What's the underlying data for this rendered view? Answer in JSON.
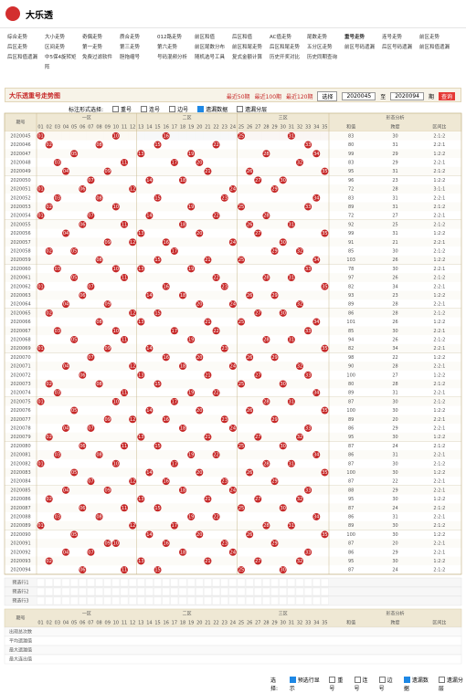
{
  "header": {
    "title": "大乐透"
  },
  "nav": [
    "综合走势",
    "大小走势",
    "奇偶走势",
    "质合走势",
    "012路走势",
    "前区和值",
    "后区和值",
    "AC值走势",
    "尾数走势",
    "重号走势",
    "连号走势",
    "前区走势",
    "后区走势",
    "区间走势",
    "第一走势",
    "第三走势",
    "第六走势",
    "前区尾数分布",
    "前区和尾走势",
    "后区和尾走势",
    "五分区走势",
    "前区号码遗漏",
    "后区号码遗漏",
    "前区和值遗漏",
    "后区和值遗漏",
    "中5保4旋转矩阵",
    "免费过滤软件",
    "胆拖缩号",
    "号码混频分析",
    "随机选号工具",
    "复式金额计算",
    "历史开奖对比",
    "历史同期查询"
  ],
  "panel": {
    "title": "大乐透重号走势图",
    "links": [
      "最近50期",
      "最近100期",
      "最近120期"
    ],
    "select": "选择",
    "from": "2020045",
    "to_label": "至",
    "to": "2020094",
    "period_label": "期",
    "query": "查询"
  },
  "options": {
    "label": "标注形式选择:",
    "items": [
      "重号",
      "连号",
      "边号",
      "遗漏数据",
      "遗漏分层"
    ]
  },
  "table": {
    "period": "期号",
    "zones": [
      "一区",
      "二区",
      "三区"
    ],
    "analysis": "形态分析",
    "analysis_cols": [
      "和值",
      "跨度",
      "区间比"
    ],
    "numbers": [
      "01",
      "02",
      "03",
      "04",
      "05",
      "06",
      "07",
      "08",
      "09",
      "10",
      "11",
      "12",
      "13",
      "14",
      "15",
      "16",
      "17",
      "18",
      "19",
      "20",
      "21",
      "22",
      "23",
      "24",
      "25",
      "26",
      "27",
      "28",
      "29",
      "30",
      "31",
      "32",
      "33",
      "34",
      "35"
    ],
    "rows": [
      {
        "period": "2020045",
        "nums": [
          "01",
          "10",
          "16",
          "25",
          "31"
        ],
        "sum": 83,
        "span": 30,
        "zone": "2:1:2"
      },
      {
        "period": "2020046",
        "nums": [
          "02",
          "08",
          "15",
          "22",
          "33"
        ],
        "sum": 80,
        "span": 31,
        "zone": "2:2:1"
      },
      {
        "period": "2020047",
        "nums": [
          "05",
          "13",
          "19",
          "28",
          "34"
        ],
        "sum": 99,
        "span": 29,
        "zone": "1:2:2"
      },
      {
        "period": "2020048",
        "nums": [
          "03",
          "11",
          "17",
          "20",
          "32"
        ],
        "sum": 83,
        "span": 29,
        "zone": "2:2:1"
      },
      {
        "period": "2020049",
        "nums": [
          "04",
          "09",
          "21",
          "26",
          "35"
        ],
        "sum": 95,
        "span": 31,
        "zone": "2:1:2"
      },
      {
        "period": "2020050",
        "nums": [
          "07",
          "14",
          "18",
          "27",
          "30"
        ],
        "sum": 96,
        "span": 23,
        "zone": "1:2:2"
      },
      {
        "period": "2020051",
        "nums": [
          "01",
          "06",
          "12",
          "24",
          "29"
        ],
        "sum": 72,
        "span": 28,
        "zone": "3:1:1"
      },
      {
        "period": "2020052",
        "nums": [
          "03",
          "08",
          "15",
          "23",
          "34"
        ],
        "sum": 83,
        "span": 31,
        "zone": "2:2:1"
      },
      {
        "period": "2020053",
        "nums": [
          "02",
          "10",
          "19",
          "25",
          "33"
        ],
        "sum": 89,
        "span": 31,
        "zone": "2:1:2"
      },
      {
        "period": "2020054",
        "nums": [
          "01",
          "07",
          "14",
          "22",
          "28"
        ],
        "sum": 72,
        "span": 27,
        "zone": "2:2:1"
      },
      {
        "period": "2020055",
        "nums": [
          "06",
          "11",
          "18",
          "26",
          "31"
        ],
        "sum": 92,
        "span": 25,
        "zone": "2:1:2"
      },
      {
        "period": "2020056",
        "nums": [
          "04",
          "13",
          "20",
          "27",
          "35"
        ],
        "sum": 99,
        "span": 31,
        "zone": "1:2:2"
      },
      {
        "period": "2020057",
        "nums": [
          "09",
          "12",
          "16",
          "24",
          "30"
        ],
        "sum": 91,
        "span": 21,
        "zone": "2:2:1"
      },
      {
        "period": "2020058",
        "nums": [
          "02",
          "05",
          "17",
          "29",
          "32"
        ],
        "sum": 85,
        "span": 30,
        "zone": "2:1:2"
      },
      {
        "period": "2020059",
        "nums": [
          "08",
          "15",
          "21",
          "25",
          "34"
        ],
        "sum": 103,
        "span": 26,
        "zone": "1:2:2"
      },
      {
        "period": "2020060",
        "nums": [
          "03",
          "10",
          "13",
          "19",
          "33"
        ],
        "sum": 78,
        "span": 30,
        "zone": "2:2:1"
      },
      {
        "period": "2020061",
        "nums": [
          "05",
          "11",
          "22",
          "28",
          "31"
        ],
        "sum": 97,
        "span": 26,
        "zone": "2:1:2"
      },
      {
        "period": "2020062",
        "nums": [
          "01",
          "07",
          "16",
          "23",
          "35"
        ],
        "sum": 82,
        "span": 34,
        "zone": "2:2:1"
      },
      {
        "period": "2020063",
        "nums": [
          "06",
          "14",
          "18",
          "26",
          "29"
        ],
        "sum": 93,
        "span": 23,
        "zone": "1:2:2"
      },
      {
        "period": "2020064",
        "nums": [
          "04",
          "09",
          "20",
          "24",
          "32"
        ],
        "sum": 89,
        "span": 28,
        "zone": "2:2:1"
      },
      {
        "period": "2020065",
        "nums": [
          "02",
          "12",
          "15",
          "27",
          "30"
        ],
        "sum": 86,
        "span": 28,
        "zone": "2:1:2"
      },
      {
        "period": "2020066",
        "nums": [
          "08",
          "13",
          "21",
          "25",
          "34"
        ],
        "sum": 101,
        "span": 26,
        "zone": "1:2:2"
      },
      {
        "period": "2020067",
        "nums": [
          "03",
          "10",
          "17",
          "22",
          "33"
        ],
        "sum": 85,
        "span": 30,
        "zone": "2:2:1"
      },
      {
        "period": "2020068",
        "nums": [
          "05",
          "11",
          "19",
          "28",
          "31"
        ],
        "sum": 94,
        "span": 26,
        "zone": "2:1:2"
      },
      {
        "period": "2020069",
        "nums": [
          "01",
          "09",
          "14",
          "23",
          "35"
        ],
        "sum": 82,
        "span": 34,
        "zone": "2:2:1"
      },
      {
        "period": "2020070",
        "nums": [
          "07",
          "16",
          "20",
          "26",
          "29"
        ],
        "sum": 98,
        "span": 22,
        "zone": "1:2:2"
      },
      {
        "period": "2020071",
        "nums": [
          "04",
          "12",
          "18",
          "24",
          "32"
        ],
        "sum": 90,
        "span": 28,
        "zone": "2:2:1"
      },
      {
        "period": "2020072",
        "nums": [
          "06",
          "13",
          "21",
          "27",
          "33"
        ],
        "sum": 100,
        "span": 27,
        "zone": "1:2:2"
      },
      {
        "period": "2020073",
        "nums": [
          "02",
          "08",
          "15",
          "25",
          "30"
        ],
        "sum": 80,
        "span": 28,
        "zone": "2:1:2"
      },
      {
        "period": "2020074",
        "nums": [
          "03",
          "11",
          "19",
          "22",
          "34"
        ],
        "sum": 89,
        "span": 31,
        "zone": "2:2:1"
      },
      {
        "period": "2020075",
        "nums": [
          "01",
          "10",
          "17",
          "28",
          "31"
        ],
        "sum": 87,
        "span": 30,
        "zone": "2:1:2"
      },
      {
        "period": "2020076",
        "nums": [
          "05",
          "14",
          "20",
          "26",
          "35"
        ],
        "sum": 100,
        "span": 30,
        "zone": "1:2:2"
      },
      {
        "period": "2020077",
        "nums": [
          "09",
          "12",
          "16",
          "23",
          "29"
        ],
        "sum": 89,
        "span": 20,
        "zone": "2:2:1"
      },
      {
        "period": "2020078",
        "nums": [
          "04",
          "07",
          "18",
          "24",
          "33"
        ],
        "sum": 86,
        "span": 29,
        "zone": "2:2:1"
      },
      {
        "period": "2020079",
        "nums": [
          "02",
          "13",
          "21",
          "27",
          "32"
        ],
        "sum": 95,
        "span": 30,
        "zone": "1:2:2"
      },
      {
        "period": "2020080",
        "nums": [
          "06",
          "11",
          "15",
          "25",
          "30"
        ],
        "sum": 87,
        "span": 24,
        "zone": "2:1:2"
      },
      {
        "period": "2020081",
        "nums": [
          "03",
          "08",
          "19",
          "22",
          "34"
        ],
        "sum": 86,
        "span": 31,
        "zone": "2:2:1"
      },
      {
        "period": "2020082",
        "nums": [
          "01",
          "10",
          "17",
          "28",
          "31"
        ],
        "sum": 87,
        "span": 30,
        "zone": "2:1:2"
      },
      {
        "period": "2020083",
        "nums": [
          "05",
          "14",
          "20",
          "26",
          "35"
        ],
        "sum": 100,
        "span": 30,
        "zone": "1:2:2"
      },
      {
        "period": "2020084",
        "nums": [
          "07",
          "12",
          "16",
          "23",
          "29"
        ],
        "sum": 87,
        "span": 22,
        "zone": "2:2:1"
      },
      {
        "period": "2020085",
        "nums": [
          "04",
          "09",
          "18",
          "24",
          "33"
        ],
        "sum": 88,
        "span": 29,
        "zone": "2:2:1"
      },
      {
        "period": "2020086",
        "nums": [
          "02",
          "13",
          "21",
          "27",
          "32"
        ],
        "sum": 95,
        "span": 30,
        "zone": "1:2:2"
      },
      {
        "period": "2020087",
        "nums": [
          "06",
          "11",
          "15",
          "25",
          "30"
        ],
        "sum": 87,
        "span": 24,
        "zone": "2:1:2"
      },
      {
        "period": "2020088",
        "nums": [
          "03",
          "08",
          "19",
          "22",
          "34"
        ],
        "sum": 86,
        "span": 31,
        "zone": "2:2:1"
      },
      {
        "period": "2020089",
        "nums": [
          "01",
          "12",
          "17",
          "28",
          "31"
        ],
        "sum": 89,
        "span": 30,
        "zone": "2:1:2"
      },
      {
        "period": "2020090",
        "nums": [
          "05",
          "14",
          "20",
          "26",
          "35"
        ],
        "sum": 100,
        "span": 30,
        "zone": "1:2:2"
      },
      {
        "period": "2020091",
        "nums": [
          "09",
          "10",
          "16",
          "23",
          "29"
        ],
        "sum": 87,
        "span": 20,
        "zone": "2:2:1"
      },
      {
        "period": "2020092",
        "nums": [
          "04",
          "07",
          "18",
          "24",
          "33"
        ],
        "sum": 86,
        "span": 29,
        "zone": "2:2:1"
      },
      {
        "period": "2020093",
        "nums": [
          "02",
          "13",
          "21",
          "27",
          "32"
        ],
        "sum": 95,
        "span": 30,
        "zone": "1:2:2"
      },
      {
        "period": "2020094",
        "nums": [
          "06",
          "11",
          "15",
          "25",
          "30"
        ],
        "sum": 87,
        "span": 24,
        "zone": "2:1:2"
      }
    ],
    "preselect": [
      "预选行1",
      "预选行2",
      "预选行3"
    ],
    "stats": [
      "出现总次数",
      "平均遗漏值",
      "最大遗漏值",
      "最大连出值"
    ]
  },
  "bottom": {
    "label": "选择:",
    "items": [
      "预选行显示",
      "重号",
      "连号",
      "边号",
      "遗漏数据",
      "遗漏分层"
    ]
  }
}
